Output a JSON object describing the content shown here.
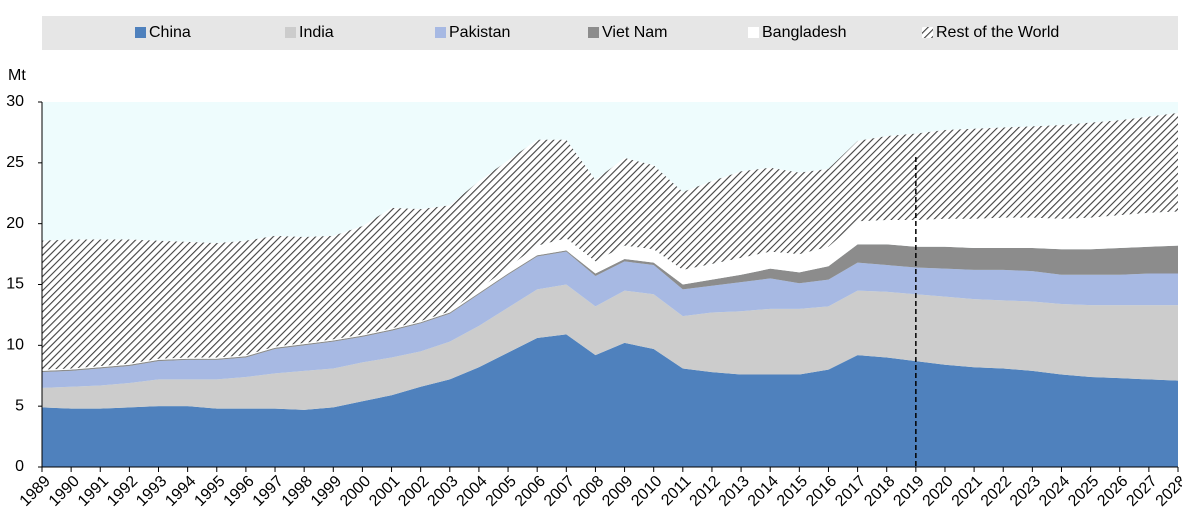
{
  "chart_data": {
    "type": "stacked_area",
    "y_label": "Mt",
    "x": [
      1989,
      1990,
      1991,
      1992,
      1993,
      1994,
      1995,
      1996,
      1997,
      1998,
      1999,
      2000,
      2001,
      2002,
      2003,
      2004,
      2005,
      2006,
      2007,
      2008,
      2009,
      2010,
      2011,
      2012,
      2013,
      2014,
      2015,
      2016,
      2017,
      2018,
      2019,
      2020,
      2021,
      2022,
      2023,
      2024,
      2025,
      2026,
      2027,
      2028
    ],
    "xlim": [
      1989,
      2028
    ],
    "ylim": [
      0,
      30
    ],
    "yticks": [
      0,
      5,
      10,
      15,
      20,
      25,
      30
    ],
    "vline": 2019,
    "series": [
      {
        "name": "China",
        "color": "#4f81bd",
        "values": [
          4.9,
          4.8,
          4.8,
          4.9,
          5.0,
          5.0,
          4.8,
          4.8,
          4.8,
          4.7,
          4.9,
          5.4,
          5.9,
          6.6,
          7.2,
          8.2,
          9.4,
          10.6,
          10.9,
          9.2,
          10.2,
          9.7,
          8.1,
          7.8,
          7.6,
          7.6,
          7.6,
          8.0,
          9.2,
          9.0,
          8.7,
          8.4,
          8.2,
          8.1,
          7.9,
          7.6,
          7.4,
          7.3,
          7.2,
          7.1
        ]
      },
      {
        "name": "India",
        "color": "#cccccc",
        "values": [
          1.6,
          1.8,
          1.9,
          2.0,
          2.2,
          2.2,
          2.4,
          2.6,
          2.9,
          3.2,
          3.2,
          3.2,
          3.1,
          2.9,
          3.1,
          3.4,
          3.7,
          4.0,
          4.1,
          4.0,
          4.3,
          4.5,
          4.3,
          4.9,
          5.2,
          5.4,
          5.4,
          5.2,
          5.3,
          5.4,
          5.5,
          5.6,
          5.6,
          5.6,
          5.7,
          5.8,
          5.9,
          6.0,
          6.1,
          6.2
        ]
      },
      {
        "name": "Pakistan",
        "color": "#a7b9e3",
        "values": [
          1.3,
          1.3,
          1.4,
          1.4,
          1.5,
          1.6,
          1.6,
          1.6,
          2.0,
          2.1,
          2.2,
          2.1,
          2.2,
          2.3,
          2.3,
          2.6,
          2.7,
          2.7,
          2.7,
          2.5,
          2.4,
          2.4,
          2.2,
          2.2,
          2.4,
          2.5,
          2.1,
          2.2,
          2.3,
          2.2,
          2.2,
          2.3,
          2.4,
          2.5,
          2.5,
          2.4,
          2.5,
          2.5,
          2.6,
          2.6
        ]
      },
      {
        "name": "Viet Nam",
        "color": "#8c8c8c",
        "values": [
          0.1,
          0.1,
          0.1,
          0.1,
          0.1,
          0.1,
          0.1,
          0.1,
          0.1,
          0.1,
          0.1,
          0.1,
          0.1,
          0.1,
          0.1,
          0.1,
          0.1,
          0.1,
          0.1,
          0.2,
          0.2,
          0.2,
          0.4,
          0.5,
          0.6,
          0.8,
          0.9,
          1.1,
          1.5,
          1.7,
          1.7,
          1.8,
          1.8,
          1.8,
          1.9,
          2.1,
          2.1,
          2.2,
          2.2,
          2.3
        ]
      },
      {
        "name": "Bangladesh",
        "color": "#ffffff",
        "values": [
          0.1,
          0.1,
          0.1,
          0.1,
          0.1,
          0.1,
          0.1,
          0.1,
          0.1,
          0.1,
          0.1,
          0.1,
          0.1,
          0.1,
          0.1,
          0.3,
          0.5,
          0.8,
          1.0,
          1.0,
          1.1,
          1.1,
          1.2,
          1.3,
          1.4,
          1.4,
          1.5,
          1.6,
          1.9,
          2.0,
          2.2,
          2.3,
          2.4,
          2.5,
          2.5,
          2.5,
          2.6,
          2.7,
          2.8,
          2.8
        ]
      },
      {
        "name": "Rest of the World",
        "color": "#404040",
        "pattern": "hatch",
        "values": [
          10.6,
          10.6,
          10.4,
          10.2,
          9.7,
          9.5,
          9.4,
          9.4,
          9.1,
          8.7,
          8.5,
          8.9,
          9.9,
          9.2,
          8.7,
          8.9,
          8.8,
          8.7,
          8.1,
          6.7,
          7.2,
          6.9,
          6.4,
          6.8,
          7.1,
          6.9,
          6.7,
          6.4,
          6.6,
          6.9,
          7.1,
          7.3,
          7.4,
          7.4,
          7.5,
          7.7,
          7.8,
          7.8,
          7.9,
          8.1
        ]
      }
    ]
  }
}
